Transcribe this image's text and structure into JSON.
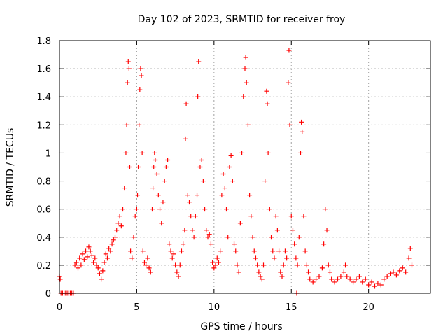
{
  "chart_data": {
    "type": "scatter",
    "title": "Day 102 of 2023, SRMTID for receiver froy",
    "xlabel": "GPS time / hours",
    "ylabel": "SRMTID / TECUs",
    "xlim": [
      0,
      24
    ],
    "ylim": [
      0,
      1.8
    ],
    "xticks": [
      0,
      5,
      10,
      15,
      20
    ],
    "xtick_labels": [
      "0",
      "5",
      "10",
      "15",
      "20"
    ],
    "yticks": [
      0,
      0.2,
      0.4,
      0.6,
      0.8,
      1.0,
      1.2,
      1.4,
      1.6,
      1.8
    ],
    "ytick_labels": [
      "0",
      "0.2",
      "0.4",
      "0.6",
      "0.8",
      "1",
      "1.2",
      "1.4",
      "1.6",
      "1.8"
    ],
    "grid": true,
    "marker": "+",
    "color": "#ff0000",
    "series": [
      {
        "name": "SRMTID",
        "points": [
          [
            0.0,
            0.12
          ],
          [
            0.05,
            0.1
          ],
          [
            0.1,
            0.0
          ],
          [
            0.2,
            0.0
          ],
          [
            0.3,
            0.0
          ],
          [
            0.4,
            0.0
          ],
          [
            0.5,
            0.0
          ],
          [
            0.6,
            0.0
          ],
          [
            0.7,
            0.0
          ],
          [
            0.8,
            0.0
          ],
          [
            0.9,
            0.0
          ],
          [
            1.0,
            0.2
          ],
          [
            1.1,
            0.22
          ],
          [
            1.2,
            0.18
          ],
          [
            1.3,
            0.25
          ],
          [
            1.4,
            0.2
          ],
          [
            1.5,
            0.28
          ],
          [
            1.6,
            0.24
          ],
          [
            1.7,
            0.3
          ],
          [
            1.8,
            0.26
          ],
          [
            1.9,
            0.33
          ],
          [
            2.0,
            0.3
          ],
          [
            2.1,
            0.27
          ],
          [
            2.2,
            0.22
          ],
          [
            2.3,
            0.25
          ],
          [
            2.4,
            0.2
          ],
          [
            2.5,
            0.18
          ],
          [
            2.6,
            0.14
          ],
          [
            2.7,
            0.1
          ],
          [
            2.8,
            0.16
          ],
          [
            2.9,
            0.22
          ],
          [
            3.0,
            0.28
          ],
          [
            3.1,
            0.25
          ],
          [
            3.2,
            0.32
          ],
          [
            3.3,
            0.3
          ],
          [
            3.4,
            0.35
          ],
          [
            3.5,
            0.38
          ],
          [
            3.6,
            0.4
          ],
          [
            3.7,
            0.45
          ],
          [
            3.8,
            0.5
          ],
          [
            3.9,
            0.55
          ],
          [
            4.0,
            0.48
          ],
          [
            4.1,
            0.6
          ],
          [
            4.2,
            0.75
          ],
          [
            4.3,
            1.0
          ],
          [
            4.35,
            1.2
          ],
          [
            4.4,
            1.5
          ],
          [
            4.45,
            1.65
          ],
          [
            4.5,
            1.6
          ],
          [
            4.55,
            0.9
          ],
          [
            4.6,
            0.3
          ],
          [
            4.7,
            0.25
          ],
          [
            4.8,
            0.4
          ],
          [
            4.9,
            0.55
          ],
          [
            5.0,
            0.6
          ],
          [
            5.05,
            0.7
          ],
          [
            5.1,
            0.9
          ],
          [
            5.15,
            1.2
          ],
          [
            5.2,
            1.45
          ],
          [
            5.25,
            1.6
          ],
          [
            5.3,
            1.55
          ],
          [
            5.35,
            1.0
          ],
          [
            5.4,
            0.3
          ],
          [
            5.5,
            0.22
          ],
          [
            5.6,
            0.2
          ],
          [
            5.7,
            0.25
          ],
          [
            5.8,
            0.18
          ],
          [
            5.9,
            0.15
          ],
          [
            6.0,
            0.6
          ],
          [
            6.05,
            0.75
          ],
          [
            6.1,
            0.9
          ],
          [
            6.15,
            1.0
          ],
          [
            6.2,
            0.95
          ],
          [
            6.3,
            0.85
          ],
          [
            6.4,
            0.7
          ],
          [
            6.5,
            0.6
          ],
          [
            6.6,
            0.5
          ],
          [
            6.7,
            0.65
          ],
          [
            6.8,
            0.8
          ],
          [
            6.9,
            0.9
          ],
          [
            7.0,
            0.95
          ],
          [
            7.1,
            0.35
          ],
          [
            7.2,
            0.3
          ],
          [
            7.3,
            0.25
          ],
          [
            7.4,
            0.28
          ],
          [
            7.5,
            0.2
          ],
          [
            7.6,
            0.15
          ],
          [
            7.7,
            0.12
          ],
          [
            7.8,
            0.2
          ],
          [
            7.9,
            0.3
          ],
          [
            8.0,
            0.35
          ],
          [
            8.1,
            0.45
          ],
          [
            8.15,
            1.1
          ],
          [
            8.2,
            1.35
          ],
          [
            8.3,
            0.7
          ],
          [
            8.4,
            0.65
          ],
          [
            8.5,
            0.55
          ],
          [
            8.6,
            0.45
          ],
          [
            8.7,
            0.4
          ],
          [
            8.8,
            0.55
          ],
          [
            8.9,
            0.7
          ],
          [
            8.95,
            1.4
          ],
          [
            9.0,
            1.65
          ],
          [
            9.1,
            0.9
          ],
          [
            9.2,
            0.95
          ],
          [
            9.3,
            0.8
          ],
          [
            9.4,
            0.6
          ],
          [
            9.5,
            0.45
          ],
          [
            9.6,
            0.4
          ],
          [
            9.7,
            0.42
          ],
          [
            9.8,
            0.35
          ],
          [
            9.9,
            0.22
          ],
          [
            10.0,
            0.18
          ],
          [
            10.1,
            0.2
          ],
          [
            10.2,
            0.25
          ],
          [
            10.3,
            0.22
          ],
          [
            10.4,
            0.3
          ],
          [
            10.5,
            0.7
          ],
          [
            10.6,
            0.85
          ],
          [
            10.7,
            0.75
          ],
          [
            10.8,
            0.6
          ],
          [
            10.9,
            0.4
          ],
          [
            11.0,
            0.9
          ],
          [
            11.1,
            0.98
          ],
          [
            11.2,
            0.8
          ],
          [
            11.3,
            0.35
          ],
          [
            11.4,
            0.3
          ],
          [
            11.5,
            0.2
          ],
          [
            11.6,
            0.15
          ],
          [
            11.7,
            0.5
          ],
          [
            11.8,
            1.0
          ],
          [
            11.9,
            1.4
          ],
          [
            12.0,
            1.6
          ],
          [
            12.05,
            1.68
          ],
          [
            12.1,
            1.5
          ],
          [
            12.2,
            1.2
          ],
          [
            12.3,
            0.7
          ],
          [
            12.4,
            0.55
          ],
          [
            12.5,
            0.4
          ],
          [
            12.6,
            0.3
          ],
          [
            12.7,
            0.25
          ],
          [
            12.8,
            0.2
          ],
          [
            12.9,
            0.15
          ],
          [
            13.0,
            0.12
          ],
          [
            13.1,
            0.1
          ],
          [
            13.2,
            0.2
          ],
          [
            13.3,
            0.8
          ],
          [
            13.4,
            1.44
          ],
          [
            13.45,
            1.35
          ],
          [
            13.5,
            1.0
          ],
          [
            13.6,
            0.6
          ],
          [
            13.7,
            0.4
          ],
          [
            13.8,
            0.3
          ],
          [
            13.9,
            0.25
          ],
          [
            14.0,
            0.55
          ],
          [
            14.1,
            0.45
          ],
          [
            14.2,
            0.3
          ],
          [
            14.3,
            0.15
          ],
          [
            14.4,
            0.12
          ],
          [
            14.5,
            0.2
          ],
          [
            14.6,
            0.3
          ],
          [
            14.7,
            0.25
          ],
          [
            14.8,
            1.5
          ],
          [
            14.85,
            1.73
          ],
          [
            14.9,
            1.2
          ],
          [
            15.0,
            0.55
          ],
          [
            15.1,
            0.45
          ],
          [
            15.2,
            0.35
          ],
          [
            15.3,
            0.25
          ],
          [
            15.35,
            0.0
          ],
          [
            15.4,
            0.2
          ],
          [
            15.5,
            0.4
          ],
          [
            15.6,
            1.0
          ],
          [
            15.65,
            1.22
          ],
          [
            15.7,
            1.15
          ],
          [
            15.8,
            0.55
          ],
          [
            15.9,
            0.3
          ],
          [
            16.0,
            0.2
          ],
          [
            16.1,
            0.15
          ],
          [
            16.2,
            0.1
          ],
          [
            16.4,
            0.08
          ],
          [
            16.6,
            0.1
          ],
          [
            16.8,
            0.12
          ],
          [
            17.0,
            0.18
          ],
          [
            17.1,
            0.35
          ],
          [
            17.2,
            0.6
          ],
          [
            17.3,
            0.45
          ],
          [
            17.4,
            0.2
          ],
          [
            17.5,
            0.15
          ],
          [
            17.6,
            0.1
          ],
          [
            17.8,
            0.08
          ],
          [
            18.0,
            0.1
          ],
          [
            18.2,
            0.12
          ],
          [
            18.4,
            0.15
          ],
          [
            18.5,
            0.2
          ],
          [
            18.6,
            0.12
          ],
          [
            18.8,
            0.1
          ],
          [
            19.0,
            0.08
          ],
          [
            19.2,
            0.1
          ],
          [
            19.4,
            0.12
          ],
          [
            19.6,
            0.08
          ],
          [
            19.8,
            0.1
          ],
          [
            20.0,
            0.06
          ],
          [
            20.2,
            0.08
          ],
          [
            20.4,
            0.05
          ],
          [
            20.6,
            0.07
          ],
          [
            20.8,
            0.06
          ],
          [
            21.0,
            0.1
          ],
          [
            21.2,
            0.12
          ],
          [
            21.4,
            0.14
          ],
          [
            21.6,
            0.15
          ],
          [
            21.8,
            0.13
          ],
          [
            22.0,
            0.16
          ],
          [
            22.2,
            0.18
          ],
          [
            22.4,
            0.15
          ],
          [
            22.6,
            0.25
          ],
          [
            22.7,
            0.32
          ],
          [
            22.8,
            0.2
          ]
        ]
      }
    ]
  }
}
